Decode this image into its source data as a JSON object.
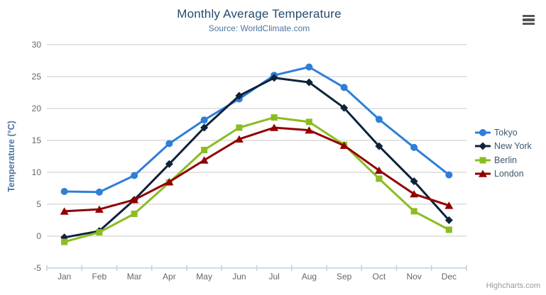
{
  "chart_data": {
    "type": "line",
    "title": "Monthly Average Temperature",
    "subtitle": "Source: WorldClimate.com",
    "categories": [
      "Jan",
      "Feb",
      "Mar",
      "Apr",
      "May",
      "Jun",
      "Jul",
      "Aug",
      "Sep",
      "Oct",
      "Nov",
      "Dec"
    ],
    "xlabel": "",
    "ylabel": "Temperature (°C)",
    "ylim": [
      -5,
      30
    ],
    "ytick_step": 5,
    "yticks": [
      -5,
      0,
      5,
      10,
      15,
      20,
      25,
      30
    ],
    "grid": true,
    "legend_position": "right",
    "series": [
      {
        "name": "Tokyo",
        "color": "#2f7ed8",
        "marker": "circle",
        "values": [
          7.0,
          6.9,
          9.5,
          14.5,
          18.2,
          21.5,
          25.2,
          26.5,
          23.3,
          18.3,
          13.9,
          9.6
        ]
      },
      {
        "name": "New York",
        "color": "#0d233a",
        "marker": "diamond",
        "values": [
          -0.2,
          0.8,
          5.7,
          11.3,
          17.0,
          22.0,
          24.8,
          24.1,
          20.1,
          14.1,
          8.6,
          2.5
        ]
      },
      {
        "name": "Berlin",
        "color": "#8bbc21",
        "marker": "square",
        "values": [
          -0.9,
          0.6,
          3.5,
          8.4,
          13.5,
          17.0,
          18.6,
          17.9,
          14.3,
          9.0,
          3.9,
          1.0
        ]
      },
      {
        "name": "London",
        "color": "#910000",
        "marker": "triangle",
        "values": [
          3.9,
          4.2,
          5.7,
          8.5,
          11.9,
          15.2,
          17.0,
          16.6,
          14.2,
          10.3,
          6.6,
          4.8
        ]
      }
    ]
  },
  "credits": {
    "label": "Highcharts.com"
  },
  "menu": {
    "icon": "hamburger-icon"
  },
  "colors": {
    "title": "#274b6d",
    "subtitle": "#4d759e",
    "y_axis_title": "#4d759e",
    "axis_label": "#666666",
    "axis_line": "#c0d0e0",
    "gridline": "#c9c9c9",
    "legend_text": "#3e576f",
    "credit": "#999999",
    "menu_icon": "#555555",
    "background": "#ffffff"
  }
}
